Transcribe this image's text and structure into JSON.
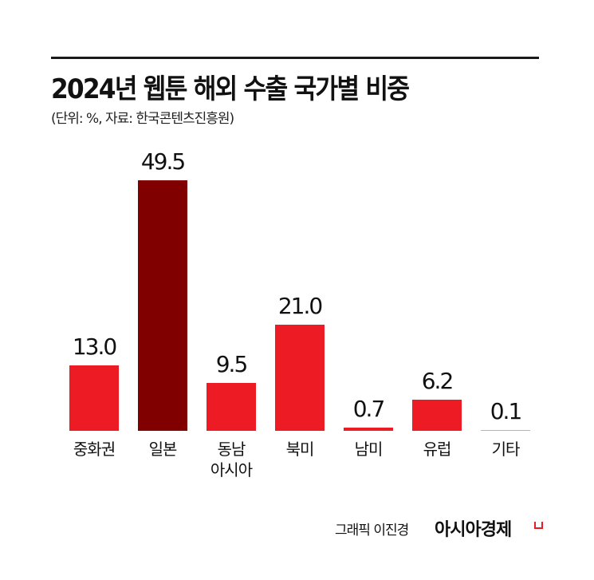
{
  "header": {
    "title": "2024년 웹툰 해외 수출 국가별 비중",
    "subtitle": "(단위: %, 자료: 한국콘텐츠진흥원)"
  },
  "footer": {
    "credit": "그래픽 이진경",
    "brand": "아시아경제"
  },
  "colors": {
    "bar": "#ed1c24",
    "highlight": "#800000",
    "small_bar": "#e8a0a0"
  },
  "bars": [
    {
      "label": "중화권",
      "value_text": "13.0"
    },
    {
      "label": "일본",
      "value_text": "49.5"
    },
    {
      "label": "동남\n아시아",
      "value_text": "9.5"
    },
    {
      "label": "북미",
      "value_text": "21.0"
    },
    {
      "label": "남미",
      "value_text": "0.7"
    },
    {
      "label": "유럽",
      "value_text": "6.2"
    },
    {
      "label": "기타",
      "value_text": "0.1"
    }
  ],
  "chart_data": {
    "type": "bar",
    "title": "2024년 웹툰 해외 수출 국가별 비중",
    "subtitle": "(단위: %, 자료: 한국콘텐츠진흥원)",
    "categories": [
      "중화권",
      "일본",
      "동남아시아",
      "북미",
      "남미",
      "유럽",
      "기타"
    ],
    "values": [
      13.0,
      49.5,
      9.5,
      21.0,
      0.7,
      6.2,
      0.1
    ],
    "xlabel": "",
    "ylabel": "",
    "unit": "%",
    "ylim": [
      0,
      50
    ],
    "grid": false,
    "legend": "none",
    "highlighted_category": "일본"
  }
}
